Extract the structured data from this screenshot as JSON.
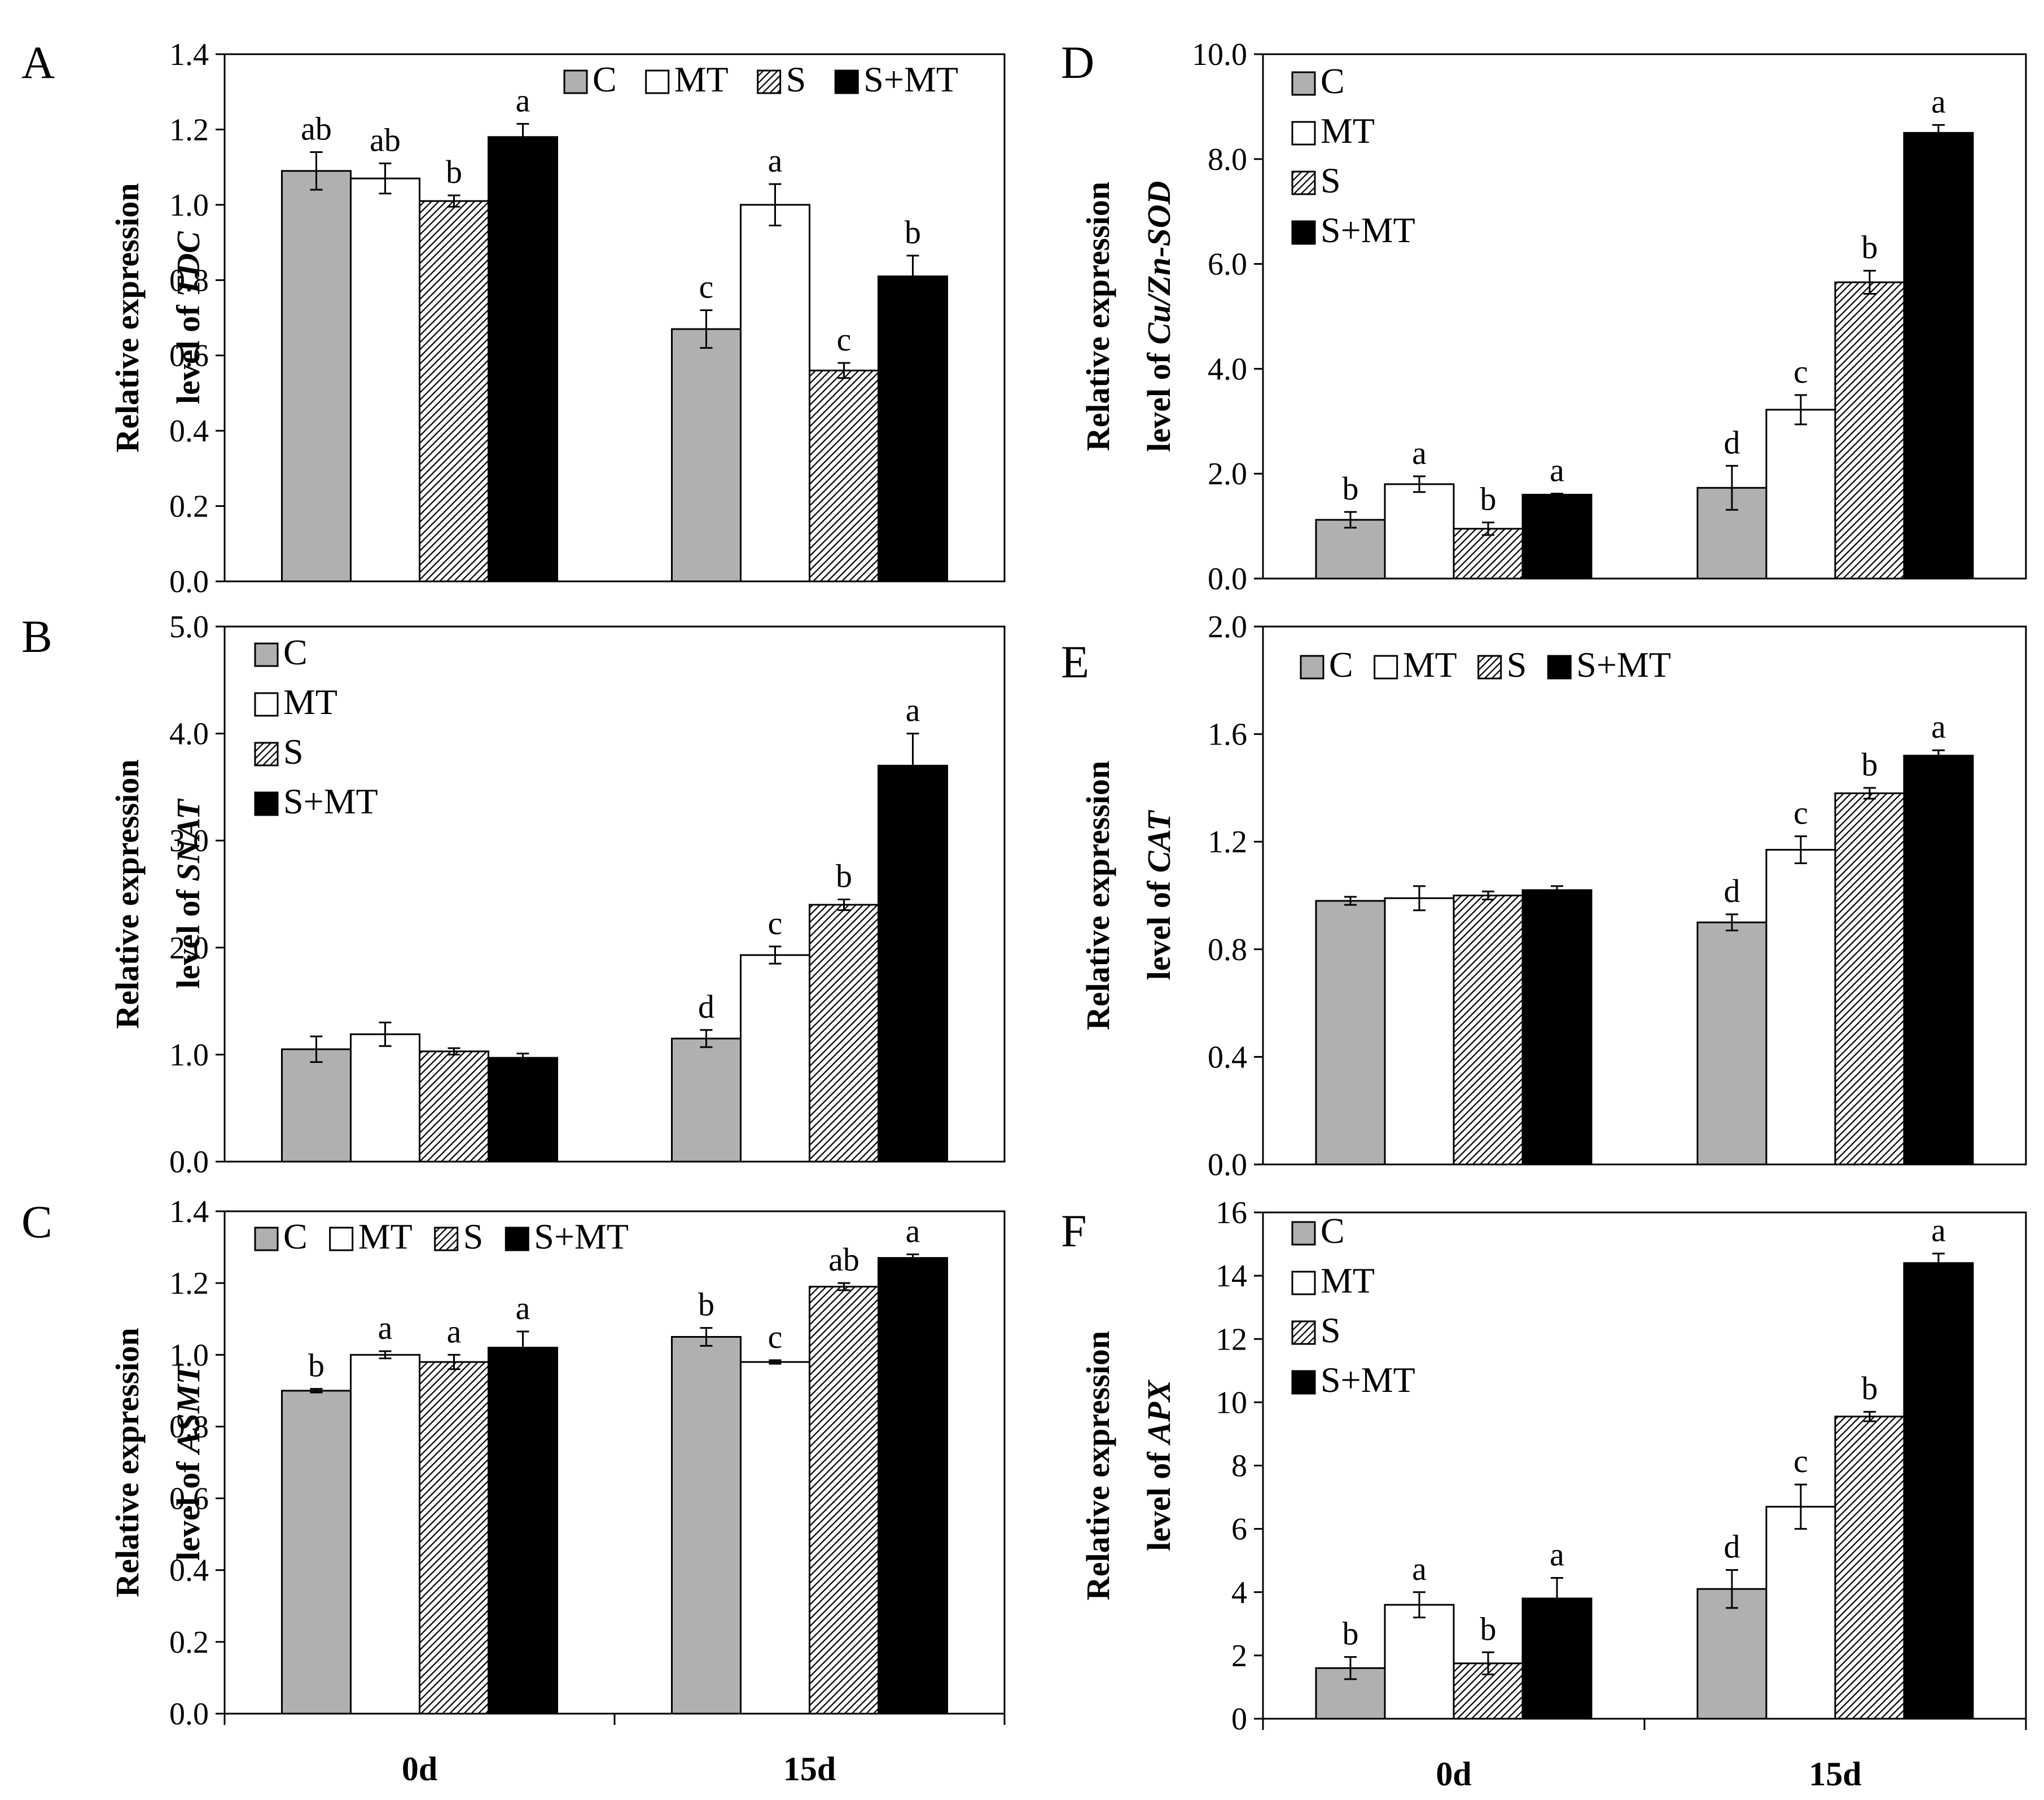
{
  "categories": [
    "0d",
    "15d"
  ],
  "series": [
    "C",
    "MT",
    "S",
    "S+MT"
  ],
  "colors": {
    "C": "#b0b0b0",
    "MT": "#ffffff",
    "S": "hatch",
    "S+MT": "#000000",
    "axis": "#000000"
  },
  "chart_data": [
    {
      "id": "A",
      "type": "bar",
      "panel_label": "A",
      "ylabel_prefix": "Relative expression\nlevel of ",
      "ylabel_gene": "TDC",
      "ylim": [
        0,
        1.4
      ],
      "yticks": [
        "0.0",
        "0.2",
        "0.4",
        "0.6",
        "0.8",
        "1.0",
        "1.2",
        "1.4"
      ],
      "legend": "top-right",
      "legend_layout": "horizontal",
      "categories": [
        "0d",
        "15d"
      ],
      "series": [
        {
          "name": "C",
          "values": [
            1.09,
            0.67
          ],
          "errors": [
            0.05,
            0.05
          ],
          "letters": [
            "ab",
            "c"
          ]
        },
        {
          "name": "MT",
          "values": [
            1.07,
            1.0
          ],
          "errors": [
            0.04,
            0.055
          ],
          "letters": [
            "ab",
            "a"
          ]
        },
        {
          "name": "S",
          "values": [
            1.01,
            0.56
          ],
          "errors": [
            0.015,
            0.02
          ],
          "letters": [
            "b",
            "c"
          ]
        },
        {
          "name": "S+MT",
          "values": [
            1.18,
            0.81
          ],
          "errors": [
            0.035,
            0.055
          ],
          "letters": [
            "a",
            "b"
          ]
        }
      ]
    },
    {
      "id": "B",
      "type": "bar",
      "panel_label": "B",
      "ylabel_prefix": "Relative expression\nlevel of ",
      "ylabel_gene": "SNAT",
      "ylim": [
        0,
        5.0
      ],
      "yticks": [
        "0.0",
        "1.0",
        "2.0",
        "3.0",
        "4.0",
        "5.0"
      ],
      "legend": "top-left",
      "legend_layout": "vertical",
      "categories": [
        "0d",
        "15d"
      ],
      "series": [
        {
          "name": "C",
          "values": [
            1.05,
            1.15
          ],
          "errors": [
            0.12,
            0.08
          ],
          "letters": [
            "",
            "d"
          ]
        },
        {
          "name": "MT",
          "values": [
            1.19,
            1.93
          ],
          "errors": [
            0.11,
            0.08
          ],
          "letters": [
            "",
            "c"
          ]
        },
        {
          "name": "S",
          "values": [
            1.03,
            2.4
          ],
          "errors": [
            0.03,
            0.05
          ],
          "letters": [
            "",
            "b"
          ]
        },
        {
          "name": "S+MT",
          "values": [
            0.97,
            3.7
          ],
          "errors": [
            0.04,
            0.3
          ],
          "letters": [
            "",
            "a"
          ]
        }
      ]
    },
    {
      "id": "C",
      "type": "bar",
      "panel_label": "C",
      "ylabel_prefix": "Relative expression\nlevel of ",
      "ylabel_gene": "ASMT",
      "ylim": [
        0,
        1.4
      ],
      "yticks": [
        "0.0",
        "0.2",
        "0.4",
        "0.6",
        "0.8",
        "1.0",
        "1.2",
        "1.4"
      ],
      "legend": "top-left",
      "legend_layout": "horizontal",
      "categories": [
        "0d",
        "15d"
      ],
      "series": [
        {
          "name": "C",
          "values": [
            0.9,
            1.05
          ],
          "errors": [
            0.005,
            0.025
          ],
          "letters": [
            "b",
            "b"
          ]
        },
        {
          "name": "MT",
          "values": [
            1.0,
            0.98
          ],
          "errors": [
            0.01,
            0.005
          ],
          "letters": [
            "a",
            "c"
          ]
        },
        {
          "name": "S",
          "values": [
            0.98,
            1.19
          ],
          "errors": [
            0.02,
            0.01
          ],
          "letters": [
            "a",
            "ab"
          ]
        },
        {
          "name": "S+MT",
          "values": [
            1.02,
            1.27
          ],
          "errors": [
            0.045,
            0.01
          ],
          "letters": [
            "a",
            "a"
          ]
        }
      ]
    },
    {
      "id": "D",
      "type": "bar",
      "panel_label": "D",
      "ylabel_prefix": "Relative expression\nlevel of ",
      "ylabel_gene": "Cu/Zn-SOD",
      "ylim": [
        0,
        10.0
      ],
      "yticks": [
        "0.0",
        "2.0",
        "4.0",
        "6.0",
        "8.0",
        "10.0"
      ],
      "legend": "top-left",
      "legend_layout": "vertical",
      "categories": [
        "0d",
        "15d"
      ],
      "series": [
        {
          "name": "C",
          "values": [
            1.12,
            1.73
          ],
          "errors": [
            0.15,
            0.42
          ],
          "letters": [
            "b",
            "d"
          ]
        },
        {
          "name": "MT",
          "values": [
            1.8,
            3.22
          ],
          "errors": [
            0.15,
            0.28
          ],
          "letters": [
            "a",
            "c"
          ]
        },
        {
          "name": "S",
          "values": [
            0.95,
            5.65
          ],
          "errors": [
            0.12,
            0.22
          ],
          "letters": [
            "b",
            "b"
          ]
        },
        {
          "name": "S+MT",
          "values": [
            1.6,
            8.5
          ],
          "errors": [
            0.02,
            0.15
          ],
          "letters": [
            "a",
            "a"
          ]
        }
      ]
    },
    {
      "id": "E",
      "type": "bar",
      "panel_label": "E",
      "ylabel_prefix": "Relative expression\nlevel of ",
      "ylabel_gene": "CAT",
      "ylim": [
        0,
        2.0
      ],
      "yticks": [
        "0.0",
        "0.4",
        "0.8",
        "1.2",
        "1.6",
        "2.0"
      ],
      "legend": "top-left",
      "legend_layout": "horizontal",
      "categories": [
        "0d",
        "15d"
      ],
      "series": [
        {
          "name": "C",
          "values": [
            0.98,
            0.9
          ],
          "errors": [
            0.015,
            0.03
          ],
          "letters": [
            "",
            "d"
          ]
        },
        {
          "name": "MT",
          "values": [
            0.99,
            1.17
          ],
          "errors": [
            0.045,
            0.05
          ],
          "letters": [
            "",
            "c"
          ]
        },
        {
          "name": "S",
          "values": [
            1.0,
            1.38
          ],
          "errors": [
            0.015,
            0.02
          ],
          "letters": [
            "",
            "b"
          ]
        },
        {
          "name": "S+MT",
          "values": [
            1.02,
            1.52
          ],
          "errors": [
            0.015,
            0.02
          ],
          "letters": [
            "",
            "a"
          ]
        }
      ]
    },
    {
      "id": "F",
      "type": "bar",
      "panel_label": "F",
      "ylabel_prefix": "Relative expression\nlevel of ",
      "ylabel_gene": "APX",
      "ylim": [
        0,
        16
      ],
      "yticks": [
        "0",
        "2",
        "4",
        "6",
        "8",
        "10",
        "12",
        "14",
        "16"
      ],
      "legend": "top-left",
      "legend_layout": "vertical",
      "categories": [
        "0d",
        "15d"
      ],
      "series": [
        {
          "name": "C",
          "values": [
            1.6,
            4.1
          ],
          "errors": [
            0.35,
            0.6
          ],
          "letters": [
            "b",
            "d"
          ]
        },
        {
          "name": "MT",
          "values": [
            3.6,
            6.7
          ],
          "errors": [
            0.4,
            0.7
          ],
          "letters": [
            "a",
            "c"
          ]
        },
        {
          "name": "S",
          "values": [
            1.75,
            9.55
          ],
          "errors": [
            0.35,
            0.15
          ],
          "letters": [
            "b",
            "b"
          ]
        },
        {
          "name": "S+MT",
          "values": [
            3.8,
            14.4
          ],
          "errors": [
            0.65,
            0.3
          ],
          "letters": [
            "a",
            "a"
          ]
        }
      ]
    }
  ]
}
